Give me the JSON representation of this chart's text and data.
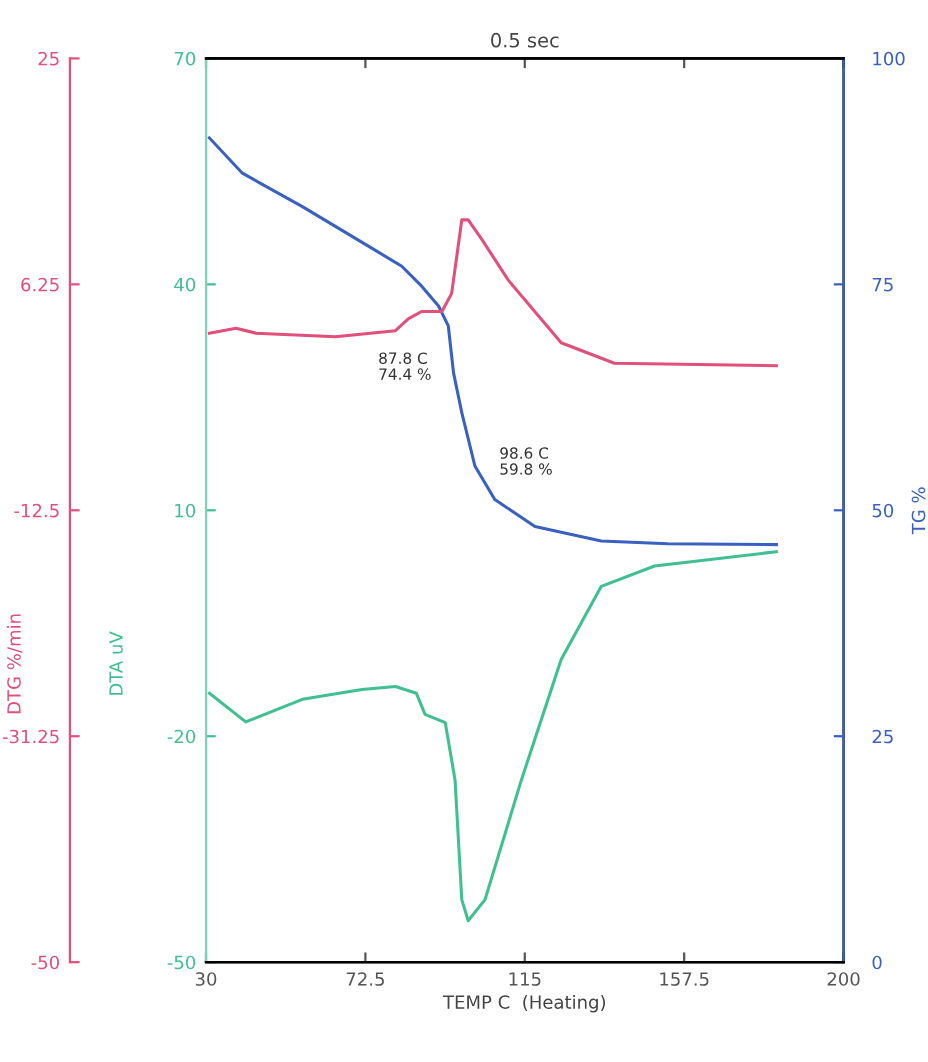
{
  "chart_data": {
    "type": "line",
    "title": "0.5 sec",
    "xlabel": "TEMP C  (Heating)",
    "ylabel": "DTA uV",
    "y2label": "TG %",
    "y3label": "DTG %/min",
    "xlim": [
      30,
      200
    ],
    "xticks": [
      30,
      72.5,
      115,
      157.5,
      200
    ],
    "ylim": [
      -50,
      70
    ],
    "yticks": [
      70,
      40,
      10,
      -20,
      -50
    ],
    "y2lim": [
      0,
      100
    ],
    "y2ticks": [
      100,
      75,
      50,
      25,
      0
    ],
    "y3lim": [
      -50,
      25
    ],
    "y3ticks": [
      25,
      6.25,
      -12.5,
      -31.25,
      -50
    ],
    "grid": false,
    "legend": false,
    "marker": "none",
    "line_style": "solid",
    "series": [
      {
        "color": "#3a60c0",
        "axis": "y2",
        "x": [
          30.9,
          39.7,
          55.7,
          73.4,
          82.2,
          87.5,
          92.0,
          94.6,
          96.0,
          98.2,
          101.7,
          107.0,
          117.7,
          135.4,
          153.1,
          182.1
        ],
        "values": [
          91.2,
          87.3,
          83.6,
          79.2,
          77.0,
          74.8,
          72.6,
          70.4,
          65.2,
          60.8,
          54.9,
          51.2,
          48.2,
          46.6,
          46.3,
          46.2
        ]
      },
      {
        "color": "#e0507a",
        "axis": "y3",
        "x": [
          30.9,
          38.0,
          43.3,
          64.5,
          80.5,
          84.0,
          87.5,
          92.9,
          95.5,
          98.2,
          99.9,
          103.5,
          110.6,
          124.7,
          138.9,
          182.1
        ],
        "values": [
          2.2,
          2.6,
          2.2,
          1.9,
          2.4,
          3.4,
          4.0,
          4.0,
          5.5,
          11.6,
          11.6,
          10.0,
          6.6,
          1.4,
          -0.3,
          -0.5
        ]
      },
      {
        "color": "#40c090",
        "axis": "y",
        "x": [
          30.9,
          40.6,
          55.7,
          71.6,
          80.5,
          86.1,
          88.4,
          93.8,
          96.4,
          98.2,
          99.9,
          104.4,
          114.1,
          124.7,
          135.4,
          149.6,
          182.1
        ],
        "values": [
          -14.3,
          -18.1,
          -15.1,
          -13.8,
          -13.4,
          -14.3,
          -17.1,
          -18.2,
          -25.8,
          -41.7,
          -44.5,
          -41.7,
          -25.8,
          -9.8,
          -0.1,
          2.6,
          4.5
        ]
      }
    ],
    "annotations": [
      "87.8 C\n74.4 %",
      "98.6 C\n59.8 %"
    ]
  }
}
